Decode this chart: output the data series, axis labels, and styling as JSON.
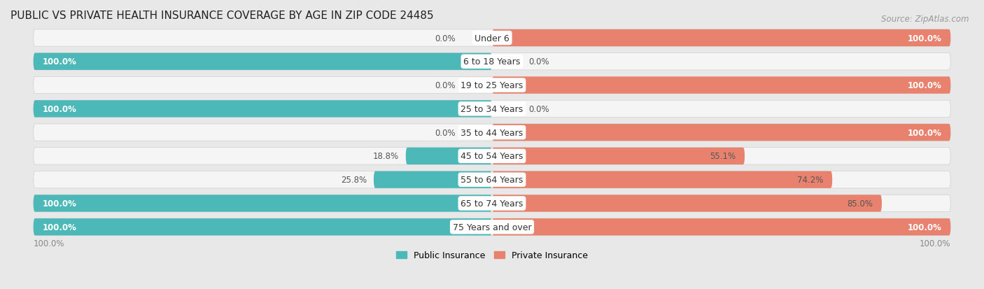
{
  "title": "PUBLIC VS PRIVATE HEALTH INSURANCE COVERAGE BY AGE IN ZIP CODE 24485",
  "source": "Source: ZipAtlas.com",
  "categories": [
    "Under 6",
    "6 to 18 Years",
    "19 to 25 Years",
    "25 to 34 Years",
    "35 to 44 Years",
    "45 to 54 Years",
    "55 to 64 Years",
    "65 to 74 Years",
    "75 Years and over"
  ],
  "public_values": [
    0.0,
    100.0,
    0.0,
    100.0,
    0.0,
    18.8,
    25.8,
    100.0,
    100.0
  ],
  "private_values": [
    100.0,
    0.0,
    100.0,
    0.0,
    100.0,
    55.1,
    74.2,
    85.0,
    100.0
  ],
  "public_color": "#4cb8b8",
  "private_color": "#e8826e",
  "public_label": "Public Insurance",
  "private_label": "Private Insurance",
  "bg_color": "#e8e8e8",
  "bar_bg_color": "#f5f5f5",
  "title_fontsize": 11,
  "value_fontsize": 8.5,
  "category_fontsize": 9,
  "legend_fontsize": 9,
  "source_fontsize": 8.5,
  "axis_label_fontsize": 8.5
}
